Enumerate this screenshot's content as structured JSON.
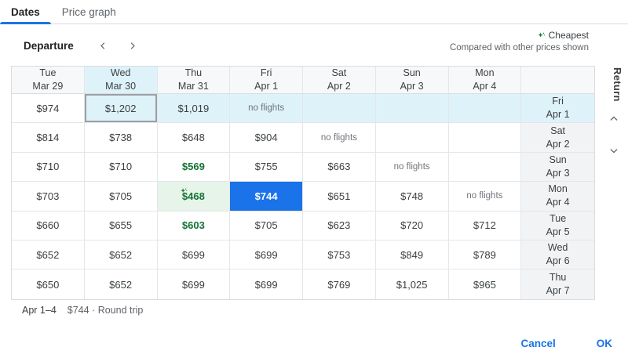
{
  "tabs": {
    "dates": "Dates",
    "price_graph": "Price graph"
  },
  "controls": {
    "departure_label": "Departure"
  },
  "legend": {
    "cheapest": "Cheapest",
    "compare_note": "Compared with other prices shown"
  },
  "grid": {
    "return_label": "Return",
    "columns": [
      {
        "day": "Tue",
        "date": "Mar 29",
        "highlight": false
      },
      {
        "day": "Wed",
        "date": "Mar 30",
        "highlight": true
      },
      {
        "day": "Thu",
        "date": "Mar 31",
        "highlight": false
      },
      {
        "day": "Fri",
        "date": "Apr 1",
        "highlight": false
      },
      {
        "day": "Sat",
        "date": "Apr 2",
        "highlight": false
      },
      {
        "day": "Sun",
        "date": "Apr 3",
        "highlight": false
      },
      {
        "day": "Mon",
        "date": "Apr 4",
        "highlight": false
      }
    ],
    "rows": [
      {
        "day": "Fri",
        "date": "Apr 1",
        "header_highlight": true,
        "cells": [
          {
            "t": "$974",
            "s": ""
          },
          {
            "t": "$1,202",
            "s": "hl hover"
          },
          {
            "t": "$1,019",
            "s": "hl"
          },
          {
            "t": "no flights",
            "s": "nf hl"
          },
          {
            "t": "",
            "s": "hl"
          },
          {
            "t": "",
            "s": "hl"
          },
          {
            "t": "",
            "s": "hl"
          }
        ]
      },
      {
        "day": "Sat",
        "date": "Apr 2",
        "header_highlight": false,
        "cells": [
          {
            "t": "$814",
            "s": ""
          },
          {
            "t": "$738",
            "s": ""
          },
          {
            "t": "$648",
            "s": ""
          },
          {
            "t": "$904",
            "s": ""
          },
          {
            "t": "no flights",
            "s": "nf"
          },
          {
            "t": "",
            "s": ""
          },
          {
            "t": "",
            "s": ""
          }
        ]
      },
      {
        "day": "Sun",
        "date": "Apr 3",
        "header_highlight": false,
        "cells": [
          {
            "t": "$710",
            "s": ""
          },
          {
            "t": "$710",
            "s": ""
          },
          {
            "t": "$569",
            "s": "green"
          },
          {
            "t": "$755",
            "s": ""
          },
          {
            "t": "$663",
            "s": ""
          },
          {
            "t": "no flights",
            "s": "nf"
          },
          {
            "t": "",
            "s": ""
          }
        ]
      },
      {
        "day": "Mon",
        "date": "Apr 4",
        "header_highlight": false,
        "cells": [
          {
            "t": "$703",
            "s": ""
          },
          {
            "t": "$705",
            "s": ""
          },
          {
            "t": "$468",
            "s": "cheapest green"
          },
          {
            "t": "$744",
            "s": "selected"
          },
          {
            "t": "$651",
            "s": ""
          },
          {
            "t": "$748",
            "s": ""
          },
          {
            "t": "no flights",
            "s": "nf"
          }
        ]
      },
      {
        "day": "Tue",
        "date": "Apr 5",
        "header_highlight": false,
        "cells": [
          {
            "t": "$660",
            "s": ""
          },
          {
            "t": "$655",
            "s": ""
          },
          {
            "t": "$603",
            "s": "green"
          },
          {
            "t": "$705",
            "s": ""
          },
          {
            "t": "$623",
            "s": ""
          },
          {
            "t": "$720",
            "s": ""
          },
          {
            "t": "$712",
            "s": ""
          }
        ]
      },
      {
        "day": "Wed",
        "date": "Apr 6",
        "header_highlight": false,
        "cells": [
          {
            "t": "$652",
            "s": ""
          },
          {
            "t": "$652",
            "s": ""
          },
          {
            "t": "$699",
            "s": ""
          },
          {
            "t": "$699",
            "s": ""
          },
          {
            "t": "$753",
            "s": ""
          },
          {
            "t": "$849",
            "s": ""
          },
          {
            "t": "$789",
            "s": ""
          }
        ]
      },
      {
        "day": "Thu",
        "date": "Apr 7",
        "header_highlight": false,
        "cells": [
          {
            "t": "$650",
            "s": ""
          },
          {
            "t": "$652",
            "s": ""
          },
          {
            "t": "$699",
            "s": ""
          },
          {
            "t": "$699",
            "s": ""
          },
          {
            "t": "$769",
            "s": ""
          },
          {
            "t": "$1,025",
            "s": ""
          },
          {
            "t": "$965",
            "s": ""
          }
        ]
      }
    ]
  },
  "summary": {
    "dates": "Apr 1–4",
    "price_trip": "$744 · Round trip"
  },
  "footer": {
    "cancel": "Cancel",
    "ok": "OK"
  },
  "colors": {
    "accent": "#1a73e8",
    "cyan": "#def2f9",
    "green-text": "#137333",
    "green-icon": "#188038",
    "green-bg": "#e6f4ea"
  }
}
